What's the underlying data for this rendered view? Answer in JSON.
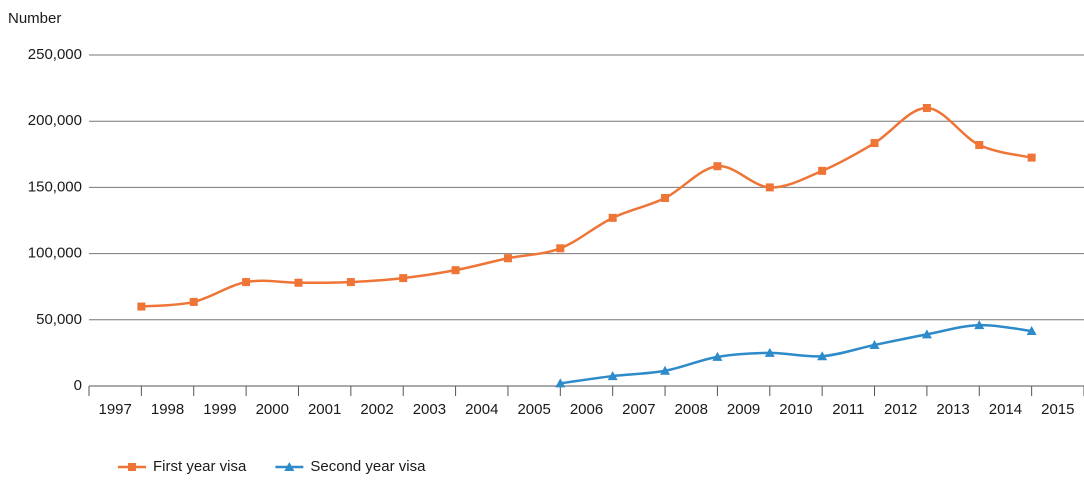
{
  "chart_data": {
    "type": "line",
    "y_axis_title": "Number",
    "categories": [
      "1997",
      "1998",
      "1999",
      "2000",
      "2001",
      "2002",
      "2003",
      "2004",
      "2005",
      "2006",
      "2007",
      "2008",
      "2009",
      "2010",
      "2011",
      "2012",
      "2013",
      "2014",
      "2015"
    ],
    "series": [
      {
        "name": "First year visa",
        "color": "#ee7536",
        "marker": "square",
        "values": [
          60000,
          63500,
          78500,
          78000,
          78500,
          81500,
          87500,
          96500,
          104000,
          127000,
          142000,
          166000,
          150000,
          162500,
          183500,
          210000,
          182000,
          172500,
          null
        ]
      },
      {
        "name": "Second year visa",
        "color": "#2e8bc9",
        "marker": "triangle",
        "values": [
          null,
          null,
          null,
          null,
          null,
          null,
          null,
          null,
          2000,
          7500,
          11500,
          22000,
          25000,
          22500,
          31000,
          39000,
          46000,
          41500,
          null
        ]
      }
    ],
    "ylim": [
      0,
      250000
    ],
    "yticks": [
      0,
      {
        "value": 50000,
        "label": "50,000"
      },
      {
        "value": 100000,
        "label": "100,000"
      },
      {
        "value": 150000,
        "label": "150,000"
      },
      {
        "value": 200000,
        "label": "200,000"
      },
      {
        "value": 250000,
        "label": "250,000"
      }
    ],
    "grid": true,
    "legend": "bottom-left",
    "smooth": true
  }
}
